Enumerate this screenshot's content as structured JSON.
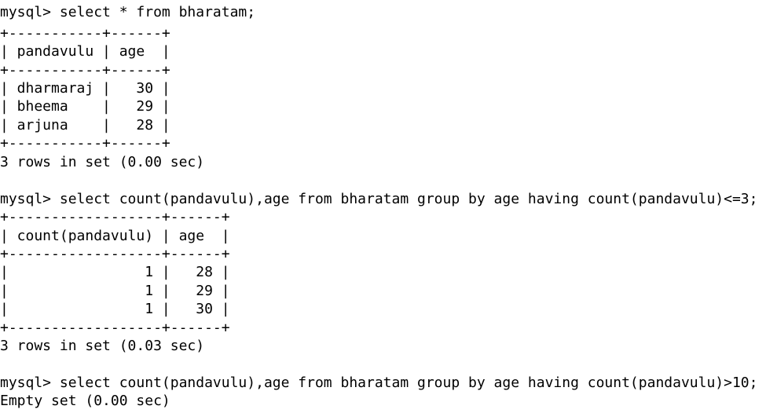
{
  "terminal": {
    "lines": [
      "mysql> select * from bharatam;",
      "+-----------+------+",
      "| pandavulu | age  |",
      "+-----------+------+",
      "| dharmaraj |   30 |",
      "| bheema    |   29 |",
      "| arjuna    |   28 |",
      "+-----------+------+",
      "3 rows in set (0.00 sec)",
      "",
      "mysql> select count(pandavulu),age from bharatam group by age having count(pandavulu)<=3;",
      "+------------------+------+",
      "| count(pandavulu) | age  |",
      "+------------------+------+",
      "|                1 |   28 |",
      "|                1 |   29 |",
      "|                1 |   30 |",
      "+------------------+------+",
      "3 rows in set (0.03 sec)",
      "",
      "mysql> select count(pandavulu),age from bharatam group by age having count(pandavulu)>10;",
      "Empty set (0.00 sec)"
    ]
  }
}
